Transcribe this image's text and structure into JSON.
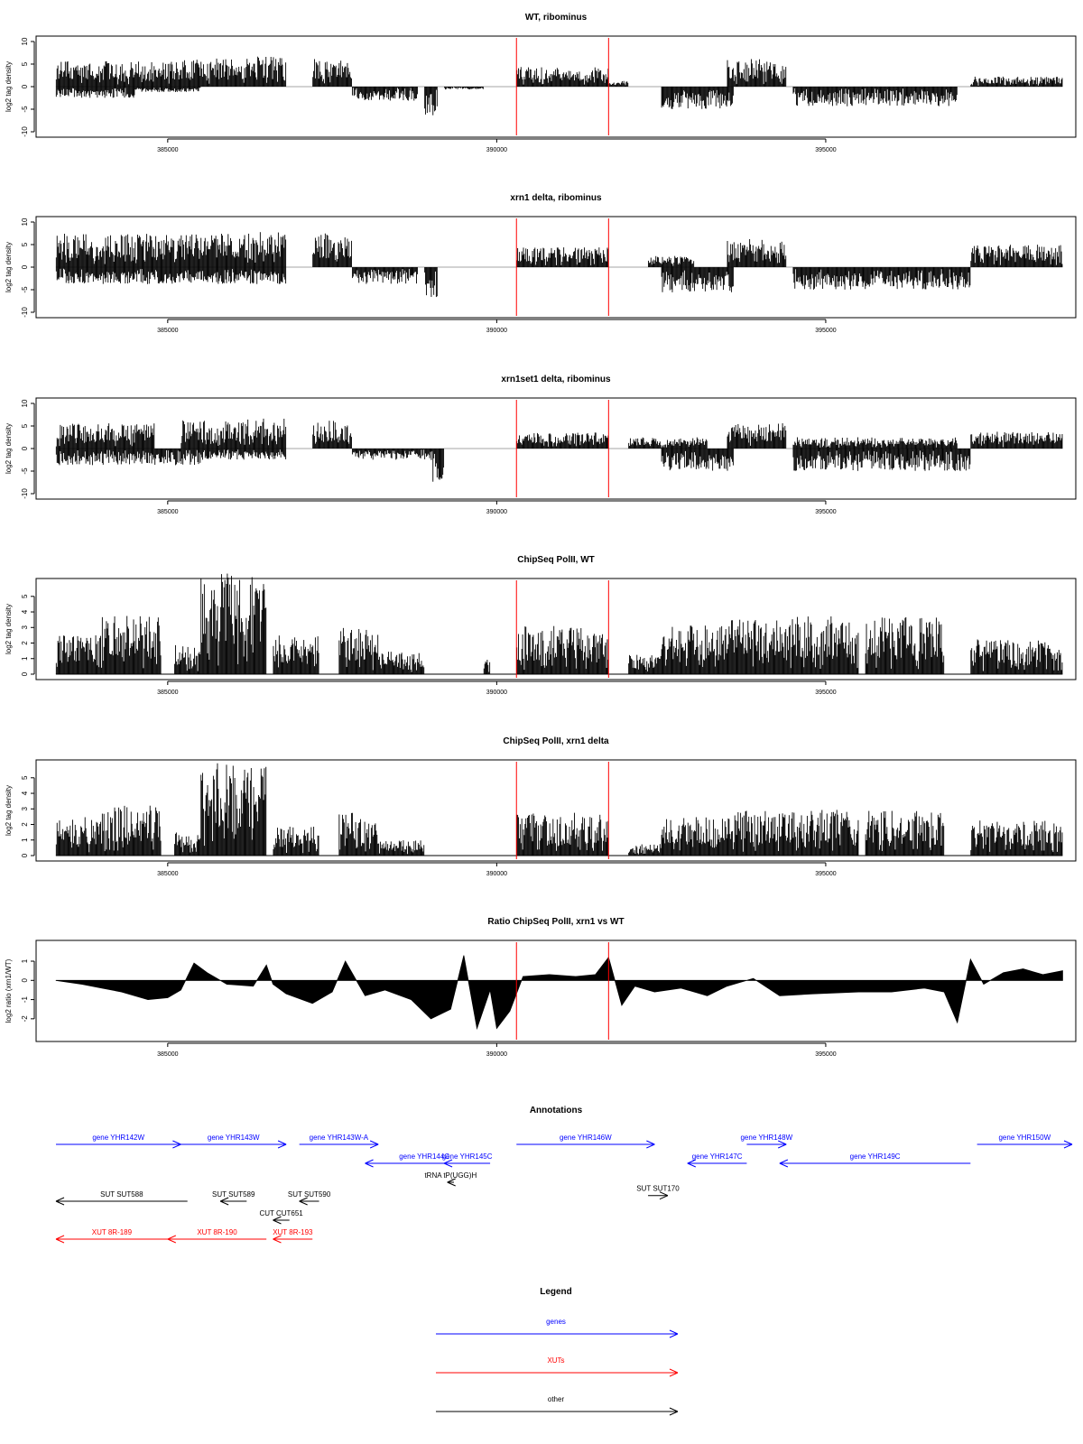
{
  "x_axis": {
    "range": [
      383000,
      398800
    ],
    "ticks": [
      385000,
      390000,
      395000
    ],
    "tick_labels": [
      "385000",
      "390000",
      "395000"
    ]
  },
  "markers": {
    "positions": [
      390300,
      391700
    ],
    "color": "#ff0000"
  },
  "chart_data": [
    {
      "type": "bar",
      "title": "WT, ribominus",
      "ylabel": "log2 tag density",
      "ylim": [
        -10,
        10
      ],
      "yticks": [
        -10,
        -5,
        0,
        5,
        10
      ],
      "ytick_labels": [
        "-10",
        "-5",
        "0",
        "5",
        "10"
      ],
      "plus_segments": [
        [
          383300,
          385200,
          4.5
        ],
        [
          385200,
          386200,
          5
        ],
        [
          386200,
          386800,
          5.5
        ],
        [
          387200,
          387800,
          5
        ],
        [
          390300,
          391700,
          3.5
        ],
        [
          391700,
          392000,
          1
        ],
        [
          393500,
          394400,
          5
        ],
        [
          397200,
          398600,
          1.8
        ]
      ],
      "minus_segments": [
        [
          383300,
          384500,
          -2
        ],
        [
          384500,
          385500,
          -1
        ],
        [
          387800,
          388800,
          -2.5
        ],
        [
          388900,
          389100,
          -5.5
        ],
        [
          389200,
          389800,
          -0.5
        ],
        [
          392500,
          393600,
          -4
        ],
        [
          394500,
          397000,
          -3.5
        ]
      ]
    },
    {
      "type": "bar",
      "title": "xrn1 delta, ribominus",
      "ylabel": "log2 tag density",
      "ylim": [
        -10,
        10
      ],
      "yticks": [
        -10,
        -5,
        0,
        5,
        10
      ],
      "ytick_labels": [
        "-10",
        "-5",
        "0",
        "5",
        "10"
      ],
      "plus_segments": [
        [
          383300,
          385200,
          6
        ],
        [
          385200,
          386200,
          6
        ],
        [
          386200,
          386800,
          6.5
        ],
        [
          387200,
          387800,
          6
        ],
        [
          390300,
          391700,
          3.5
        ],
        [
          392300,
          393000,
          2
        ],
        [
          393500,
          394400,
          5
        ],
        [
          397200,
          398600,
          4
        ]
      ],
      "minus_segments": [
        [
          383300,
          385500,
          -3
        ],
        [
          385500,
          386800,
          -3
        ],
        [
          387800,
          388800,
          -3
        ],
        [
          388900,
          389100,
          -6
        ],
        [
          392500,
          393600,
          -4.5
        ],
        [
          394500,
          397200,
          -4
        ]
      ]
    },
    {
      "type": "bar",
      "title": "xrn1set1 delta, ribominus",
      "ylabel": "log2 tag density",
      "ylim": [
        -10,
        10
      ],
      "yticks": [
        -10,
        -5,
        0,
        5,
        10
      ],
      "ytick_labels": [
        "-10",
        "-5",
        "0",
        "5",
        "10"
      ],
      "plus_segments": [
        [
          383300,
          384800,
          4.5
        ],
        [
          385200,
          386200,
          5
        ],
        [
          386200,
          386800,
          5.5
        ],
        [
          387200,
          387800,
          5
        ],
        [
          390300,
          391700,
          3
        ],
        [
          392000,
          393200,
          2
        ],
        [
          393500,
          394400,
          4.5
        ],
        [
          394500,
          397000,
          2
        ],
        [
          397200,
          398600,
          3
        ]
      ],
      "minus_segments": [
        [
          383300,
          385500,
          -3
        ],
        [
          385500,
          386800,
          -2
        ],
        [
          387800,
          389000,
          -2
        ],
        [
          389000,
          389200,
          -6
        ],
        [
          392500,
          393600,
          -4
        ],
        [
          394500,
          397200,
          -4
        ]
      ]
    },
    {
      "type": "bar",
      "title": "ChipSeq PolII, WT",
      "ylabel": "log2 tag density",
      "ylim": [
        0,
        5.8
      ],
      "yticks": [
        0,
        1,
        2,
        3,
        4,
        5
      ],
      "ytick_labels": [
        "0",
        "1",
        "2",
        "3",
        "4",
        "5"
      ],
      "segments": [
        [
          383300,
          384000,
          2
        ],
        [
          384000,
          384900,
          3
        ],
        [
          385100,
          385500,
          1.5
        ],
        [
          385500,
          386500,
          5.2
        ],
        [
          386600,
          387300,
          2
        ],
        [
          387600,
          388200,
          2.5
        ],
        [
          388200,
          388900,
          1.2
        ],
        [
          389800,
          389900,
          1
        ],
        [
          390300,
          391700,
          2.5
        ],
        [
          392000,
          392500,
          1
        ],
        [
          392500,
          393500,
          2.5
        ],
        [
          393500,
          394300,
          2.8
        ],
        [
          394300,
          395500,
          3
        ],
        [
          395600,
          396800,
          3
        ],
        [
          397200,
          398600,
          1.8
        ]
      ]
    },
    {
      "type": "bar",
      "title": "ChipSeq PolII, xrn1 delta",
      "ylabel": "log2 tag density",
      "ylim": [
        0,
        5.8
      ],
      "yticks": [
        0,
        1,
        2,
        3,
        4,
        5
      ],
      "ytick_labels": [
        "0",
        "1",
        "2",
        "3",
        "4",
        "5"
      ],
      "segments": [
        [
          383300,
          384000,
          2
        ],
        [
          384000,
          384900,
          2.6
        ],
        [
          385100,
          385500,
          1.2
        ],
        [
          385500,
          386500,
          4.8
        ],
        [
          386600,
          387300,
          1.5
        ],
        [
          387600,
          388200,
          2.2
        ],
        [
          388200,
          388900,
          0.8
        ],
        [
          390300,
          391700,
          2.2
        ],
        [
          392000,
          392500,
          0.6
        ],
        [
          392500,
          393500,
          2
        ],
        [
          393500,
          394300,
          2.3
        ],
        [
          394300,
          395500,
          2.4
        ],
        [
          395600,
          396800,
          2.3
        ],
        [
          397200,
          398600,
          1.8
        ]
      ]
    },
    {
      "type": "area",
      "title": "Ratio ChipSeq PolII, xrn1 vs WT",
      "ylabel": "log2 ratio (xrn1/WT)",
      "ylim": [
        -2.9,
        1.8
      ],
      "yticks": [
        -2,
        -1,
        0,
        1
      ],
      "ytick_labels": [
        "-2",
        "-1",
        "0",
        "1"
      ],
      "x": [
        383300,
        383700,
        384000,
        384300,
        384700,
        385000,
        385200,
        385400,
        385600,
        385900,
        386300,
        386500,
        386600,
        386800,
        387200,
        387500,
        387700,
        388000,
        388300,
        388700,
        389000,
        389300,
        389500,
        389700,
        389800,
        389900,
        390000,
        390200,
        390400,
        390800,
        391200,
        391500,
        391700,
        391900,
        392100,
        392400,
        392800,
        393200,
        393500,
        393900,
        394300,
        394800,
        395500,
        396000,
        396500,
        396800,
        397000,
        397200,
        397400,
        397700,
        398000,
        398300,
        398600
      ],
      "y": [
        0,
        -0.2,
        -0.4,
        -0.6,
        -1.0,
        -0.9,
        -0.5,
        0.9,
        0.4,
        -0.2,
        -0.3,
        0.8,
        -0.2,
        -0.7,
        -1.2,
        -0.6,
        1.0,
        -0.8,
        -0.5,
        -1.0,
        -2.0,
        -1.5,
        1.3,
        -2.5,
        -1.5,
        -0.5,
        -2.5,
        -1.6,
        0.2,
        0.3,
        0.2,
        0.3,
        1.2,
        -1.3,
        -0.3,
        -0.6,
        -0.4,
        -0.8,
        -0.3,
        0.1,
        -0.8,
        -0.7,
        -0.6,
        -0.6,
        -0.4,
        -0.6,
        -2.2,
        1.1,
        -0.2,
        0.4,
        0.6,
        0.3,
        0.5
      ]
    }
  ],
  "annotations": {
    "title": "Annotations",
    "colors": {
      "gene": "#0000ff",
      "xut": "#ff0000",
      "other": "#000000"
    },
    "features": [
      {
        "label": "gene YHR142W",
        "kind": "gene",
        "start": 383300,
        "end": 385200,
        "dir": "+",
        "row": 0
      },
      {
        "label": "gene YHR143W",
        "kind": "gene",
        "start": 385200,
        "end": 386800,
        "dir": "+",
        "row": 0
      },
      {
        "label": "gene YHR143W-A",
        "kind": "gene",
        "start": 387000,
        "end": 388200,
        "dir": "+",
        "row": 0
      },
      {
        "label": "gene YHR144C",
        "kind": "gene",
        "start": 388000,
        "end": 389800,
        "dir": "-",
        "row": 1
      },
      {
        "label": "gene YHR145C",
        "kind": "gene",
        "start": 389200,
        "end": 389900,
        "dir": "-",
        "row": 1
      },
      {
        "label": "gene YHR146W",
        "kind": "gene",
        "start": 390300,
        "end": 392400,
        "dir": "+",
        "row": 0
      },
      {
        "label": "gene YHR147C",
        "kind": "gene",
        "start": 392900,
        "end": 393800,
        "dir": "-",
        "row": 1
      },
      {
        "label": "gene YHR148W",
        "kind": "gene",
        "start": 393800,
        "end": 394400,
        "dir": "+",
        "row": 0
      },
      {
        "label": "gene YHR149C",
        "kind": "gene",
        "start": 394300,
        "end": 397200,
        "dir": "-",
        "row": 1
      },
      {
        "label": "gene YHR150W",
        "kind": "gene",
        "start": 397300,
        "end": 400000,
        "dir": "+",
        "row": 0
      },
      {
        "label": "tRNA tP(UGG)H",
        "kind": "other",
        "start": 389250,
        "end": 389350,
        "dir": "-",
        "row": 2
      },
      {
        "label": "SUT SUT588",
        "kind": "other",
        "start": 382800,
        "end": 385300,
        "dir": "-",
        "row": 3
      },
      {
        "label": "SUT SUT589",
        "kind": "other",
        "start": 385800,
        "end": 386200,
        "dir": "-",
        "row": 3
      },
      {
        "label": "SUT SUT590",
        "kind": "other",
        "start": 387000,
        "end": 387300,
        "dir": "-",
        "row": 3
      },
      {
        "label": "SUT SUT170",
        "kind": "other",
        "start": 392300,
        "end": 392600,
        "dir": "+",
        "row": 2.7
      },
      {
        "label": "CUT CUT651",
        "kind": "other",
        "start": 386600,
        "end": 386850,
        "dir": "-",
        "row": 4
      },
      {
        "label": "XUT 8R-189",
        "kind": "xut",
        "start": 382800,
        "end": 385000,
        "dir": "-",
        "row": 5
      },
      {
        "label": "XUT 8R-190",
        "kind": "xut",
        "start": 385000,
        "end": 386500,
        "dir": "-",
        "row": 5
      },
      {
        "label": "XUT 8R-193",
        "kind": "xut",
        "start": 386600,
        "end": 387200,
        "dir": "-",
        "row": 5
      }
    ]
  },
  "legend": {
    "title": "Legend",
    "entries": [
      {
        "label": "genes",
        "color": "#0000ff"
      },
      {
        "label": "XUTs",
        "color": "#ff0000"
      },
      {
        "label": "other",
        "color": "#000000"
      }
    ]
  }
}
